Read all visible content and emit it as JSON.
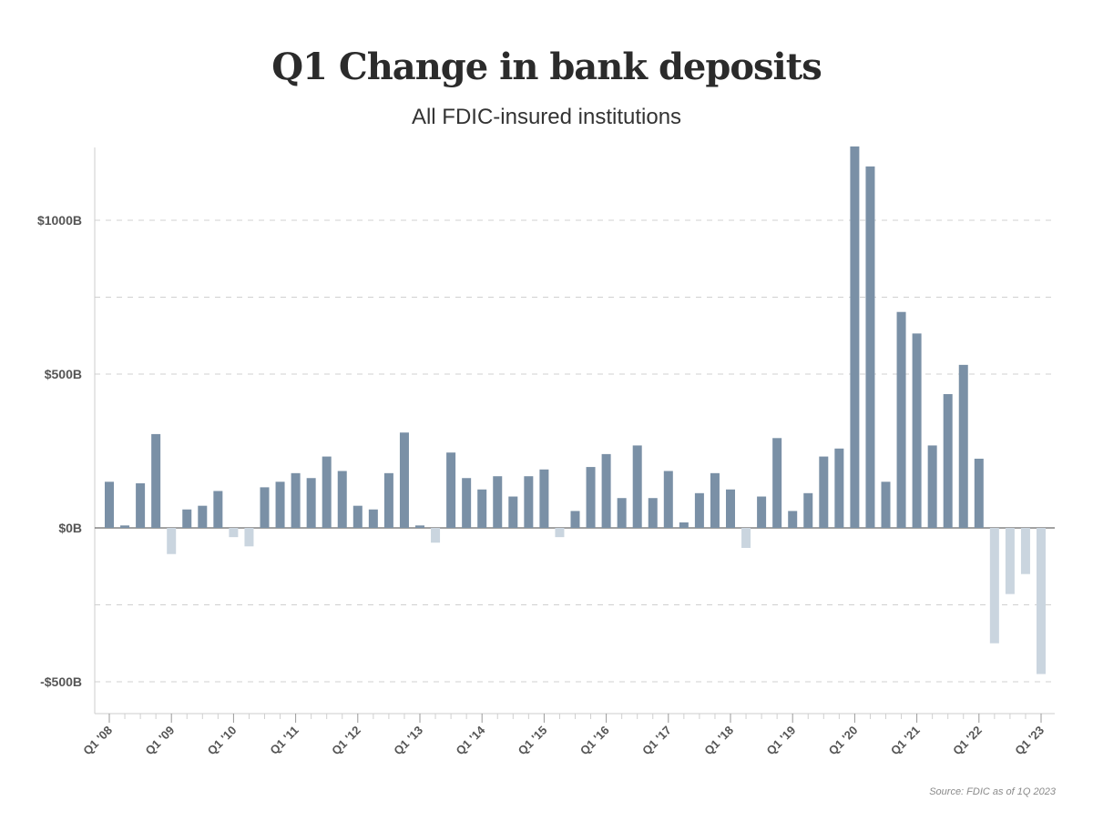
{
  "chart_data": {
    "type": "bar",
    "title": "Q1 Change in bank deposits",
    "subtitle": "All FDIC-insured institutions",
    "source": "Source: FDIC as of 1Q 2023",
    "xlabel": "",
    "ylabel": "",
    "ylim": [
      -610,
      1240
    ],
    "y_ticks": [
      {
        "value": 1000,
        "label": "$1000B"
      },
      {
        "value": 500,
        "label": "$500B"
      },
      {
        "value": 0,
        "label": "$0B"
      },
      {
        "value": -500,
        "label": "-$500B"
      }
    ],
    "grid_values": [
      1000,
      750,
      500,
      -250,
      -500
    ],
    "grid": true,
    "legend": "none",
    "x_tick_labels": [
      {
        "index": 0,
        "label": "Q1 '08"
      },
      {
        "index": 4,
        "label": "Q1 '09"
      },
      {
        "index": 8,
        "label": "Q1 '10"
      },
      {
        "index": 12,
        "label": "Q1 '11"
      },
      {
        "index": 16,
        "label": "Q1 '12"
      },
      {
        "index": 20,
        "label": "Q1 '13"
      },
      {
        "index": 24,
        "label": "Q1 '14"
      },
      {
        "index": 28,
        "label": "Q1 '15"
      },
      {
        "index": 32,
        "label": "Q1 '16"
      },
      {
        "index": 36,
        "label": "Q1 '17"
      },
      {
        "index": 40,
        "label": "Q1 '18"
      },
      {
        "index": 44,
        "label": "Q1 '19"
      },
      {
        "index": 48,
        "label": "Q1 '20"
      },
      {
        "index": 52,
        "label": "Q1 '21"
      },
      {
        "index": 56,
        "label": "Q1 '22"
      },
      {
        "index": 60,
        "label": "Q1 '23"
      }
    ],
    "categories": [
      "Q1 2008",
      "Q2 2008",
      "Q3 2008",
      "Q4 2008",
      "Q1 2009",
      "Q2 2009",
      "Q3 2009",
      "Q4 2009",
      "Q1 2010",
      "Q2 2010",
      "Q3 2010",
      "Q4 2010",
      "Q1 2011",
      "Q2 2011",
      "Q3 2011",
      "Q4 2011",
      "Q1 2012",
      "Q2 2012",
      "Q3 2012",
      "Q4 2012",
      "Q1 2013",
      "Q2 2013",
      "Q3 2013",
      "Q4 2013",
      "Q1 2014",
      "Q2 2014",
      "Q3 2014",
      "Q4 2014",
      "Q1 2015",
      "Q2 2015",
      "Q3 2015",
      "Q4 2015",
      "Q1 2016",
      "Q2 2016",
      "Q3 2016",
      "Q4 2016",
      "Q1 2017",
      "Q2 2017",
      "Q3 2017",
      "Q4 2017",
      "Q1 2018",
      "Q2 2018",
      "Q3 2018",
      "Q4 2018",
      "Q1 2019",
      "Q2 2019",
      "Q3 2019",
      "Q4 2019",
      "Q1 2020",
      "Q2 2020",
      "Q3 2020",
      "Q4 2020",
      "Q1 2021",
      "Q2 2021",
      "Q3 2021",
      "Q4 2021",
      "Q1 2022",
      "Q2 2022",
      "Q3 2022",
      "Q4 2022",
      "Q1 2023"
    ],
    "values": [
      150,
      8,
      145,
      305,
      -85,
      60,
      72,
      120,
      -30,
      -60,
      132,
      150,
      178,
      162,
      232,
      185,
      72,
      60,
      178,
      310,
      8,
      -48,
      245,
      162,
      125,
      168,
      102,
      168,
      190,
      -30,
      55,
      198,
      240,
      97,
      268,
      97,
      185,
      18,
      113,
      178,
      125,
      -65,
      102,
      292,
      55,
      113,
      232,
      258,
      1240,
      1175,
      150,
      702,
      632,
      268,
      435,
      530,
      225,
      -375,
      -215,
      -150,
      -475
    ],
    "colors": {
      "positive": "#7a90a6",
      "negative": "#cad5df",
      "zero_line": "#6b6b6b",
      "grid": "#d0d0d0",
      "axis": "#cccccc"
    }
  }
}
